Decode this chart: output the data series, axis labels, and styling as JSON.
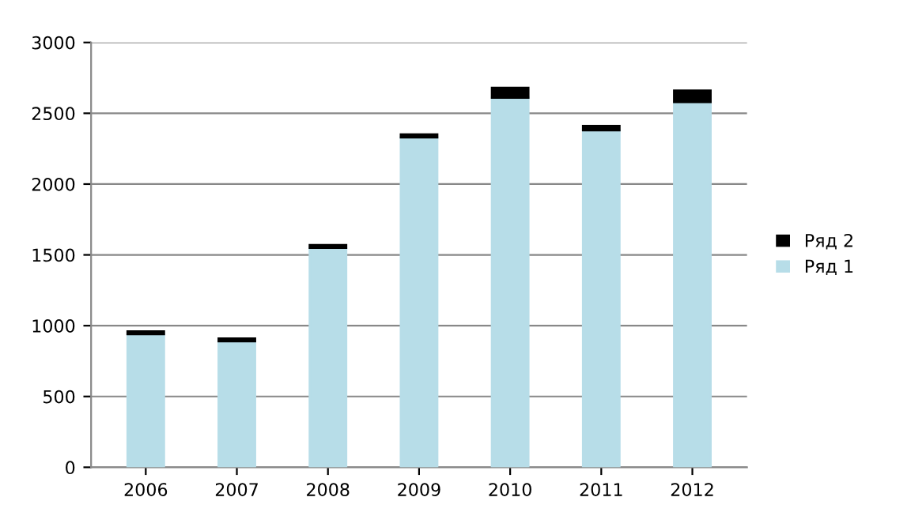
{
  "chart_data": {
    "type": "bar",
    "stacked": true,
    "categories": [
      "2006",
      "2007",
      "2008",
      "2009",
      "2010",
      "2011",
      "2012"
    ],
    "series": [
      {
        "name": "Ряд 1",
        "color": "#b7dde8",
        "values": [
          940,
          890,
          1550,
          2330,
          2610,
          2380,
          2580
        ]
      },
      {
        "name": "Ряд 2",
        "color": "#000000",
        "values": [
          20,
          20,
          20,
          20,
          70,
          30,
          80
        ]
      }
    ],
    "ylim": [
      0,
      3000
    ],
    "yticks": [
      0,
      500,
      1000,
      1500,
      2000,
      2500,
      3000
    ],
    "grid": "y",
    "legend": "right"
  }
}
